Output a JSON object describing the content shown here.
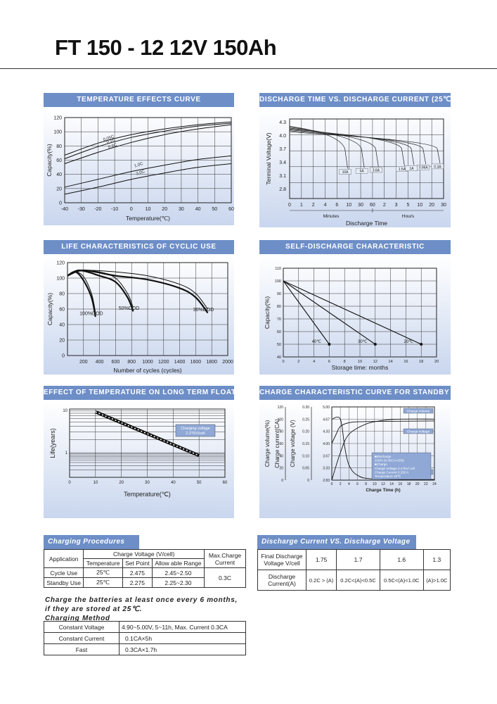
{
  "title": "FT 150 - 12   12V 150Ah",
  "headers": {
    "temp": "TEMPERATURE EFFECTS CURVE",
    "discharge": "DISCHARGE TIME VS. DISCHARGE CURRENT (25℃)",
    "life": "LIFE CHARACTERISTICS OF CYCLIC USE",
    "self": "SELF-DISCHARGE CHARACTERISTIC",
    "float": "EFFECT OF TEMPERATURE ON LONG TERM FLOAT LIFE",
    "charge": "CHARGE CHARACTERISTIC CURVE FOR STANDBY USE"
  },
  "chart_data": [
    {
      "id": "temperature_effects",
      "type": "line",
      "xlabel": "Temperature(℃)",
      "ylabel": "Capacity(%)",
      "x_ticks": [
        -40,
        -30,
        -20,
        -10,
        0,
        10,
        20,
        30,
        40,
        50,
        60
      ],
      "y_ticks": [
        0,
        20,
        40,
        60,
        80,
        100,
        120
      ],
      "xlim": [
        -40,
        60
      ],
      "ylim": [
        0,
        120
      ],
      "series": [
        {
          "name": "0.05C",
          "x": [
            -40,
            -20,
            0,
            20,
            40,
            60
          ],
          "y": [
            67,
            84,
            96,
            104,
            110,
            114
          ]
        },
        {
          "name": "0.1C",
          "x": [
            -40,
            -20,
            0,
            20,
            40,
            60
          ],
          "y": [
            62,
            79,
            92,
            101,
            108,
            112
          ]
        },
        {
          "name": "0.2C",
          "x": [
            -40,
            -20,
            0,
            20,
            40,
            60
          ],
          "y": [
            55,
            71,
            85,
            96,
            104,
            110
          ]
        },
        {
          "name": "1.0C",
          "x": [
            -40,
            -20,
            0,
            20,
            40,
            60
          ],
          "y": [
            22,
            33,
            44,
            53,
            61,
            66
          ]
        },
        {
          "name": "3.0C",
          "x": [
            -40,
            -20,
            0,
            20,
            40,
            60
          ],
          "y": [
            12,
            22,
            33,
            42,
            50,
            55
          ]
        }
      ]
    },
    {
      "id": "discharge_time_current",
      "type": "line",
      "xlabel": "Discharge Time",
      "ylabel": "Terminal Voltage(V)",
      "x_ticks": [
        "0",
        "1",
        "2",
        "4",
        "6",
        "10",
        "30",
        "60",
        "2",
        "3",
        "5",
        "10",
        "20",
        "30"
      ],
      "x_groups": [
        "Minutes",
        "Hours"
      ],
      "y_ticks": [
        2.8,
        3.1,
        3.4,
        3.7,
        4.0,
        4.3
      ],
      "series": [
        {
          "name": "10A",
          "end_tick": 4.9
        },
        {
          "name": "6A",
          "end_tick": 6.3
        },
        {
          "name": "3.6A",
          "end_tick": 7.5
        },
        {
          "name": "1.5A",
          "end_tick": 9.7
        },
        {
          "name": "1A",
          "end_tick": 10.5
        },
        {
          "name": "0.96A",
          "end_tick": 11.5
        },
        {
          "name": "0.3A",
          "end_tick": 12.7
        }
      ]
    },
    {
      "id": "cyclic_life",
      "type": "line",
      "xlabel": "Number of cycles (cycles)",
      "ylabel": "Capacity(%)",
      "x_ticks": [
        200,
        400,
        600,
        800,
        1000,
        1200,
        1400,
        1600,
        1800,
        2000
      ],
      "y_ticks": [
        0,
        20,
        40,
        60,
        80,
        100,
        120
      ],
      "xlim": [
        0,
        2000
      ],
      "ylim": [
        0,
        120
      ],
      "series": [
        {
          "name": "100%DOD",
          "x": [
            0,
            100,
            200,
            300,
            350
          ],
          "y": [
            103,
            108,
            102,
            80,
            55
          ]
        },
        {
          "name": "50%DOD",
          "x": [
            0,
            150,
            400,
            600,
            750,
            820
          ],
          "y": [
            103,
            110,
            108,
            100,
            80,
            62
          ]
        },
        {
          "name": "30%DOD",
          "x": [
            0,
            200,
            600,
            1000,
            1400,
            1600,
            1750
          ],
          "y": [
            103,
            110,
            108,
            103,
            92,
            80,
            60
          ]
        }
      ]
    },
    {
      "id": "self_discharge",
      "type": "line",
      "xlabel": "Storage time: months",
      "ylabel": "Capacity(%)",
      "x_ticks": [
        0,
        2,
        4,
        6,
        8,
        10,
        12,
        14,
        16,
        18,
        20
      ],
      "y_ticks": [
        40,
        50,
        60,
        70,
        80,
        90,
        100,
        110
      ],
      "xlim": [
        0,
        20
      ],
      "ylim": [
        40,
        110
      ],
      "series": [
        {
          "name": "40℃",
          "x": [
            0,
            6
          ],
          "y": [
            100,
            50
          ]
        },
        {
          "name": "30℃",
          "x": [
            0,
            12
          ],
          "y": [
            100,
            50
          ]
        },
        {
          "name": "20℃",
          "x": [
            0,
            18
          ],
          "y": [
            100,
            50
          ]
        }
      ]
    },
    {
      "id": "float_life",
      "type": "line",
      "xlabel": "Temperature(℃)",
      "ylabel": "Life(years)",
      "x_ticks": [
        0,
        10,
        20,
        30,
        40,
        50,
        60
      ],
      "y_ticks": [
        "1",
        "10"
      ],
      "xlim": [
        0,
        60
      ],
      "annotation": "Charging voltage 2.275V/cell",
      "series": [
        {
          "name": "",
          "x": [
            10,
            50
          ],
          "y": [
            10,
            1
          ]
        }
      ]
    },
    {
      "id": "standby_charge",
      "type": "line",
      "xlabel": "Charge Time (h)",
      "ylabel": [
        "Charge volume(%)",
        "Charge current(CA)",
        "Charge voltage (V)"
      ],
      "x_ticks": [
        0,
        2,
        4,
        6,
        8,
        10,
        12,
        14,
        16,
        18,
        20,
        22,
        24
      ],
      "y1_ticks": [
        0,
        20,
        40,
        60,
        80,
        100,
        120
      ],
      "y2_ticks": [
        "0",
        "0.05",
        "0.10",
        "0.15",
        "0.20",
        "0.25",
        "0.30"
      ],
      "y3_ticks": [
        "2.83",
        "3.33",
        "3.67",
        "4.00",
        "4.33",
        "4.67",
        "5.00"
      ],
      "legend": [
        "Charge volume",
        "Charge voltage",
        "Charge current"
      ],
      "notes": [
        "Discharge",
        "100% (0.05CA×20h)",
        "Charge",
        "Charge Voltage 2.275V/ cell",
        "Charge Current 0.25CA",
        "Temperature 25℃"
      ],
      "series": [
        {
          "name": "Charge volume",
          "x": [
            0,
            2,
            4,
            8,
            12,
            16,
            24
          ],
          "y": [
            0,
            45,
            75,
            92,
            98,
            100,
            100
          ]
        },
        {
          "name": "Charge voltage",
          "x": [
            0,
            1,
            2,
            4,
            8,
            24
          ],
          "y": [
            60,
            75,
            88,
            94,
            96,
            97
          ]
        },
        {
          "name": "Charge current",
          "x": [
            0,
            2,
            3,
            4,
            6,
            10,
            24
          ],
          "y": [
            100,
            100,
            55,
            25,
            8,
            2,
            1
          ]
        }
      ]
    }
  ],
  "charging": {
    "title": "Charging Procedures",
    "application": "Application",
    "charge_voltage": "Charge Voltage (V/cell)",
    "max_charge": "Max.Charge Current",
    "temperature": "Temperature",
    "set_point": "Set Point",
    "allowable": "Allow able Range",
    "rows": [
      {
        "app": "Cycle Use",
        "temp": "25℃",
        "set": "2.475",
        "range": "2.45~2.50"
      },
      {
        "app": "Standby Use",
        "temp": "25℃",
        "set": "2.275",
        "range": "2.25~2.30"
      }
    ],
    "max_value": "0.3C"
  },
  "note": [
    "Charge the batteries at least once every 6 months,",
    "if they are stored at 25℃."
  ],
  "method": {
    "title": "Charging Method",
    "rows": [
      {
        "label": "Constant Voltage",
        "value": "4.90~5.00V, 5~11h, Max. Current 0.3CA"
      },
      {
        "label": "Constant Current",
        "value": "0.1CA×5h"
      },
      {
        "label": "Fast",
        "value": "0.3CA×1.7h"
      }
    ]
  },
  "dcdv": {
    "title": "Discharge Current VS. Discharge Voltage",
    "row1_label": "Final Discharge Voltage V/cell",
    "voltages": [
      "1.75",
      "1.7",
      "1.6",
      "1.3"
    ],
    "row2_label": "Discharge Current(A)",
    "currents": [
      "0.2C > (A)",
      "0.2C<(A)<0.5C",
      "0.5C<(A)<1.0C",
      "(A)>1.0C"
    ]
  }
}
